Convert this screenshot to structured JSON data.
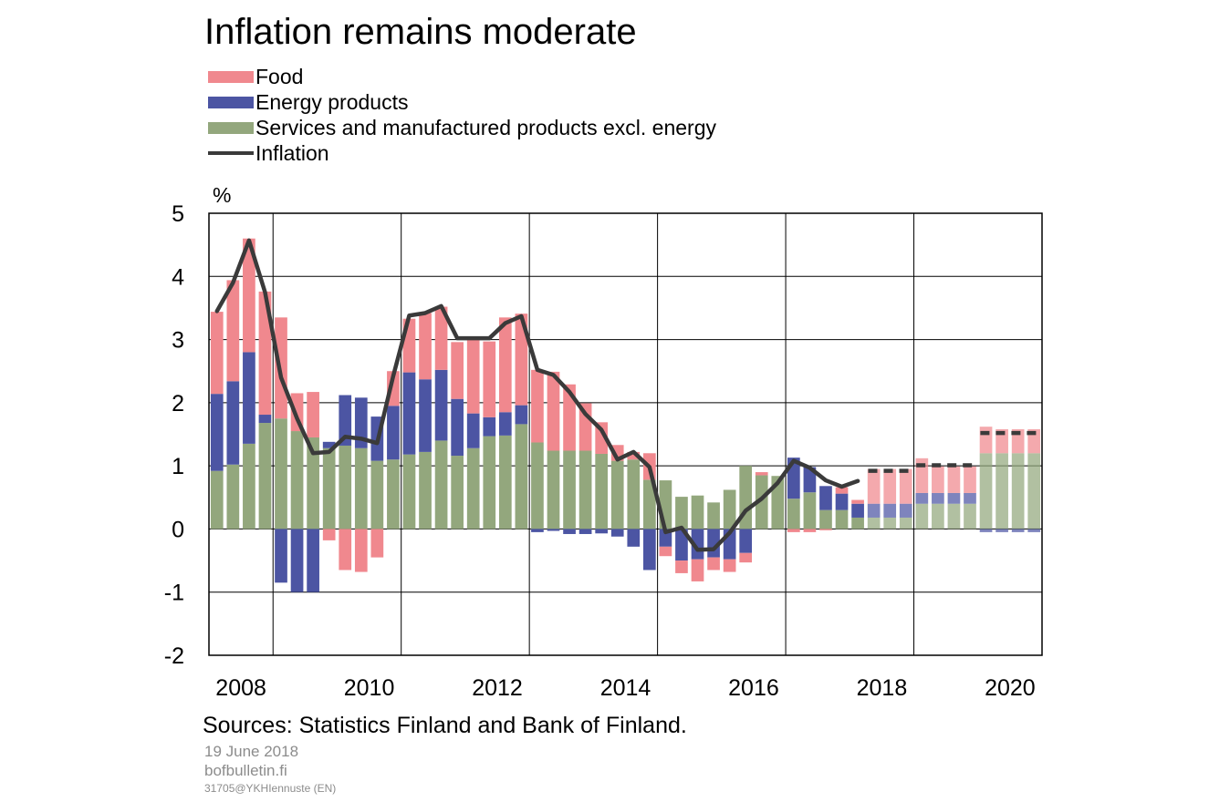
{
  "chart_data": {
    "type": "bar",
    "subtype": "stacked bar with line",
    "title": "Inflation remains moderate",
    "ylabel": "%",
    "ylim": [
      -2,
      5
    ],
    "yticks": [
      "5",
      "4",
      "3",
      "2",
      "1",
      "0",
      "-1",
      "-2"
    ],
    "xticks": [
      "2008",
      "2010",
      "2012",
      "2014",
      "2016",
      "2018",
      "2020"
    ],
    "grid": true,
    "legend_position": "top-left",
    "forecast_from_quarter": "2018Q2",
    "x": [
      "2008Q1",
      "2008Q2",
      "2008Q3",
      "2008Q4",
      "2009Q1",
      "2009Q2",
      "2009Q3",
      "2009Q4",
      "2010Q1",
      "2010Q2",
      "2010Q3",
      "2010Q4",
      "2011Q1",
      "2011Q2",
      "2011Q3",
      "2011Q4",
      "2012Q1",
      "2012Q2",
      "2012Q3",
      "2012Q4",
      "2013Q1",
      "2013Q2",
      "2013Q3",
      "2013Q4",
      "2014Q1",
      "2014Q2",
      "2014Q3",
      "2014Q4",
      "2015Q1",
      "2015Q2",
      "2015Q3",
      "2015Q4",
      "2016Q1",
      "2016Q2",
      "2016Q3",
      "2016Q4",
      "2017Q1",
      "2017Q2",
      "2017Q3",
      "2017Q4",
      "2018Q1",
      "2018Q2",
      "2018Q3",
      "2018Q4",
      "2019Q1",
      "2019Q2",
      "2019Q3",
      "2019Q4",
      "2020Q1",
      "2020Q2",
      "2020Q3",
      "2020Q4"
    ],
    "series": [
      {
        "name": "Food",
        "color": "#f0888e",
        "values": [
          1.3,
          1.6,
          1.8,
          1.95,
          1.6,
          0.6,
          0.72,
          -0.18,
          -0.65,
          -0.68,
          -0.45,
          0.55,
          0.85,
          1.05,
          1.0,
          0.9,
          1.2,
          1.2,
          1.5,
          1.45,
          1.15,
          1.25,
          1.05,
          0.75,
          0.5,
          0.25,
          0.12,
          0.42,
          -0.15,
          -0.2,
          -0.35,
          -0.2,
          -0.2,
          -0.15,
          0.05,
          0.0,
          -0.05,
          -0.05,
          -0.02,
          0.1,
          0.06,
          0.55,
          0.55,
          0.55,
          0.55,
          0.42,
          0.42,
          0.42,
          0.42,
          0.38,
          0.38,
          0.38
        ]
      },
      {
        "name": "Energy products",
        "color": "#4c55a3",
        "values": [
          1.22,
          1.32,
          1.45,
          0.13,
          -0.85,
          -1.0,
          -1.0,
          0.1,
          0.8,
          0.8,
          0.7,
          0.85,
          1.3,
          1.15,
          1.12,
          0.9,
          0.55,
          0.3,
          0.37,
          0.3,
          -0.05,
          -0.03,
          -0.08,
          -0.08,
          -0.07,
          -0.12,
          -0.28,
          -0.65,
          -0.28,
          -0.5,
          -0.48,
          -0.45,
          -0.48,
          -0.38,
          0.0,
          0.0,
          0.65,
          0.4,
          0.38,
          0.26,
          0.22,
          0.22,
          0.22,
          0.22,
          0.17,
          0.17,
          0.17,
          0.17,
          -0.05,
          -0.05,
          -0.05,
          -0.05
        ]
      },
      {
        "name": "Services and manufactured products excl. energy",
        "color": "#93a77d",
        "values": [
          0.92,
          1.02,
          1.35,
          1.68,
          1.75,
          1.55,
          1.45,
          1.28,
          1.32,
          1.28,
          1.08,
          1.1,
          1.18,
          1.22,
          1.4,
          1.16,
          1.28,
          1.47,
          1.48,
          1.66,
          1.37,
          1.24,
          1.24,
          1.24,
          1.19,
          1.08,
          1.1,
          0.78,
          0.77,
          0.51,
          0.53,
          0.42,
          0.62,
          1.0,
          0.85,
          0.84,
          0.48,
          0.58,
          0.3,
          0.3,
          0.18,
          0.18,
          0.18,
          0.18,
          0.4,
          0.4,
          0.4,
          0.4,
          1.2,
          1.2,
          1.2,
          1.2
        ]
      },
      {
        "name": "Inflation",
        "color": "#3a3a3a",
        "type": "line",
        "values": [
          3.45,
          3.9,
          4.57,
          3.75,
          2.4,
          1.75,
          1.2,
          1.22,
          1.46,
          1.43,
          1.36,
          2.42,
          3.38,
          3.42,
          3.53,
          3.02,
          3.02,
          3.02,
          3.26,
          3.37,
          2.52,
          2.44,
          2.17,
          1.82,
          1.57,
          1.1,
          1.22,
          0.98,
          -0.05,
          0.02,
          -0.33,
          -0.32,
          -0.06,
          0.29,
          0.48,
          0.73,
          1.08,
          0.97,
          0.77,
          0.67,
          0.76,
          0.92,
          0.92,
          0.92,
          1.01,
          1.01,
          1.01,
          1.01,
          1.52,
          1.52,
          1.52,
          1.52
        ]
      }
    ]
  },
  "footer": {
    "sources": "Sources: Statistics Finland and Bank of Finland.",
    "date": "19 June 2018",
    "site": "bofbulletin.fi",
    "code": "31705@YKHIennuste (EN)"
  }
}
